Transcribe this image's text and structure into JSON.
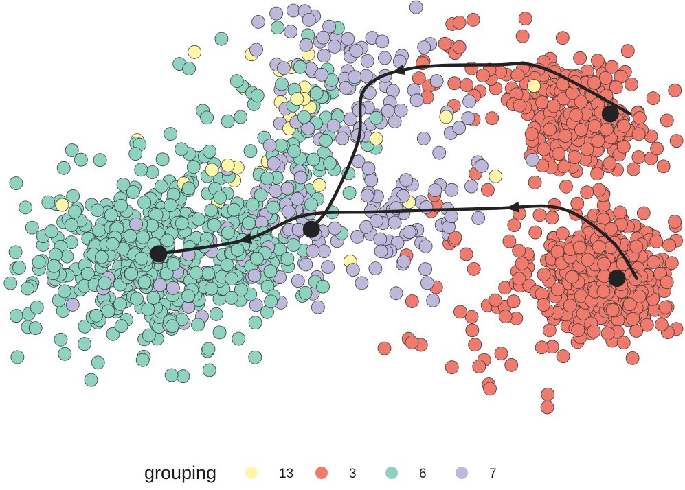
{
  "chart_data": {
    "type": "scatter",
    "title": "",
    "xlabel": "",
    "ylabel": "",
    "axes_visible": false,
    "grid": false,
    "legend_position": "bottom",
    "legend": {
      "title": "grouping",
      "entries": [
        {
          "label": "13",
          "color": "#FFF7A6"
        },
        {
          "label": "3",
          "color": "#F07A6B"
        },
        {
          "label": "6",
          "color": "#8DD3C0"
        },
        {
          "label": "7",
          "color": "#BEB9DA"
        }
      ]
    },
    "xlim": [
      -10,
      10
    ],
    "ylim": [
      -6,
      6
    ],
    "series": [
      {
        "name": "13",
        "color": "#FFF7A6",
        "clusters": [
          {
            "n": 12,
            "cx": -1.8,
            "cy": 3.6,
            "sx": 1.0,
            "sy": 0.8
          },
          {
            "n": 10,
            "cx": -3.5,
            "cy": 1.2,
            "sx": 1.3,
            "sy": 0.8
          },
          {
            "n": 6,
            "cx": 1.5,
            "cy": 0.8,
            "sx": 1.3,
            "sy": 1.2
          }
        ],
        "points": [
          {
            "x": -8.5,
            "y": 0.5
          },
          {
            "x": 6.3,
            "y": 1.8
          },
          {
            "x": 5.7,
            "y": 3.9
          },
          {
            "x": -2.8,
            "y": 4.8
          }
        ]
      },
      {
        "name": "3",
        "color": "#F07A6B",
        "clusters": [
          {
            "n": 480,
            "cx": 7.8,
            "cy": -1.5,
            "sx": 1.05,
            "sy": 0.9
          },
          {
            "n": 240,
            "cx": 7.2,
            "cy": 3.0,
            "sx": 0.95,
            "sy": 0.75
          },
          {
            "n": 45,
            "cx": 4.5,
            "cy": 4.4,
            "sx": 1.1,
            "sy": 0.8
          },
          {
            "n": 40,
            "cx": 4.2,
            "cy": -1.8,
            "sx": 1.6,
            "sy": 1.8
          }
        ],
        "points": [
          {
            "x": 9.6,
            "y": 1.6
          },
          {
            "x": 8.2,
            "y": 1.5
          },
          {
            "x": 1.2,
            "y": -3.6
          },
          {
            "x": 2.3,
            "y": -3.5
          }
        ]
      },
      {
        "name": "6",
        "color": "#8DD3C0",
        "clusters": [
          {
            "n": 430,
            "cx": -5.9,
            "cy": -1.0,
            "sx": 1.8,
            "sy": 1.25
          },
          {
            "n": 90,
            "cx": -2.7,
            "cy": -0.3,
            "sx": 1.0,
            "sy": 1.0
          },
          {
            "n": 45,
            "cx": -0.8,
            "cy": 1.9,
            "sx": 0.9,
            "sy": 1.1
          },
          {
            "n": 25,
            "cx": -2.2,
            "cy": 3.5,
            "sx": 1.4,
            "sy": 1.0
          }
        ],
        "points": []
      },
      {
        "name": "7",
        "color": "#BEB9DA",
        "clusters": [
          {
            "n": 70,
            "cx": 0.3,
            "cy": 3.8,
            "sx": 1.4,
            "sy": 0.9
          },
          {
            "n": 60,
            "cx": -1.6,
            "cy": -0.1,
            "sx": 1.0,
            "sy": 0.9
          },
          {
            "n": 55,
            "cx": 1.3,
            "cy": -0.3,
            "sx": 1.1,
            "sy": 1.0
          },
          {
            "n": 35,
            "cx": -5.0,
            "cy": -1.3,
            "sx": 1.4,
            "sy": 0.8
          },
          {
            "n": 20,
            "cx": -1.0,
            "cy": 5.3,
            "sx": 1.0,
            "sy": 0.6
          },
          {
            "n": 15,
            "cx": 3.0,
            "cy": 1.5,
            "sx": 1.0,
            "sy": 0.9
          }
        ],
        "points": []
      }
    ],
    "trajectories": [
      {
        "name": "upper-lineage",
        "color": "#222222",
        "path": [
          {
            "x": 8.6,
            "y": 3.1
          },
          {
            "x": 6.0,
            "y": 4.4
          },
          {
            "x": 4.5,
            "y": 4.5
          },
          {
            "x": 2.0,
            "y": 4.4
          },
          {
            "x": 0.6,
            "y": 3.8
          },
          {
            "x": 0.4,
            "y": 2.3
          },
          {
            "x": -0.5,
            "y": 0.4
          },
          {
            "x": -1.2,
            "y": -0.3
          }
        ],
        "arrow_at": 0.55
      },
      {
        "name": "lower-lineage",
        "color": "#222222",
        "path": [
          {
            "x": 8.8,
            "y": -1.6
          },
          {
            "x": 8.0,
            "y": -0.5
          },
          {
            "x": 6.5,
            "y": 0.4
          },
          {
            "x": 4.5,
            "y": 0.4
          },
          {
            "x": 1.0,
            "y": 0.3
          },
          {
            "x": -1.2,
            "y": 0.2
          },
          {
            "x": -3.0,
            "y": -0.5
          },
          {
            "x": -5.6,
            "y": -0.9
          }
        ],
        "arrow_at": 0.3,
        "arrow_at_2": 0.83
      }
    ],
    "endpoints": [
      {
        "x": 8.0,
        "y": 3.1
      },
      {
        "x": 8.2,
        "y": -1.6
      },
      {
        "x": -1.0,
        "y": -0.2
      },
      {
        "x": -5.6,
        "y": -0.9
      }
    ]
  }
}
